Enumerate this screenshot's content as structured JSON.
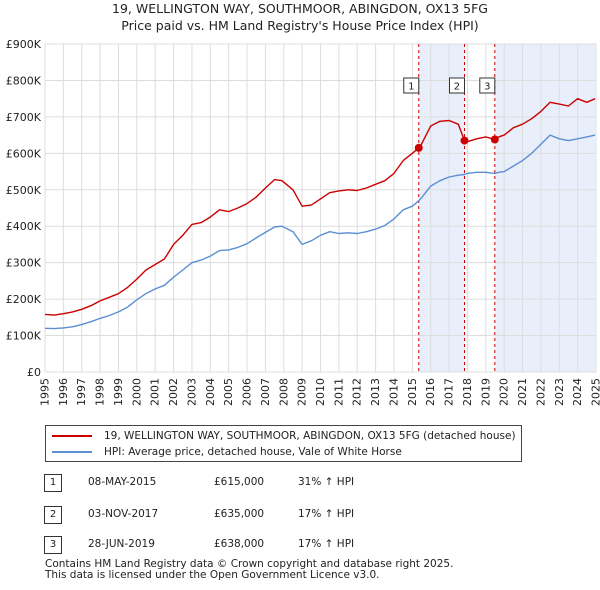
{
  "colors": {
    "property": "#cc0000",
    "hpi": "#5b8fd4",
    "shade": "#e8eefa",
    "grid": "#dddddd",
    "vline": "#cc0000"
  },
  "titles": {
    "line1": "19, WELLINGTON WAY, SOUTHMOOR, ABINGDON, OX13 5FG",
    "line2": "Price paid vs. HM Land Registry's House Price Index (HPI)"
  },
  "legend": {
    "property": "19, WELLINGTON WAY, SOUTHMOOR, ABINGDON, OX13 5FG (detached house)",
    "hpi": "HPI: Average price, detached house, Vale of White Horse"
  },
  "transactions": [
    {
      "num": "1",
      "date": "08-MAY-2015",
      "price": "£615,000",
      "hpi": "31% ↑ HPI",
      "year": 2015.35,
      "value": 615000
    },
    {
      "num": "2",
      "date": "03-NOV-2017",
      "price": "£635,000",
      "hpi": "17% ↑ HPI",
      "year": 2017.84,
      "value": 635000
    },
    {
      "num": "3",
      "date": "28-JUN-2019",
      "price": "£638,000",
      "hpi": "17% ↑ HPI",
      "year": 2019.49,
      "value": 638000
    }
  ],
  "footer": {
    "line1": "Contains HM Land Registry data © Crown copyright and database right 2025.",
    "line2": "This data is licensed under the Open Government Licence v3.0."
  },
  "chart_data": {
    "type": "line",
    "title": "19, WELLINGTON WAY, SOUTHMOOR, ABINGDON, OX13 5FG — Price paid vs. HM Land Registry's House Price Index (HPI)",
    "xlabel": "",
    "ylabel": "",
    "xlim": [
      1995,
      2025
    ],
    "ylim": [
      0,
      900000
    ],
    "x_ticks": [
      "1995",
      "1996",
      "1997",
      "1998",
      "1999",
      "2000",
      "2001",
      "2002",
      "2003",
      "2004",
      "2005",
      "2006",
      "2007",
      "2008",
      "2009",
      "2010",
      "2011",
      "2012",
      "2013",
      "2014",
      "2015",
      "2016",
      "2017",
      "2018",
      "2019",
      "2020",
      "2021",
      "2022",
      "2023",
      "2024",
      "2025"
    ],
    "y_ticks": [
      {
        "value": 0,
        "label": "£0"
      },
      {
        "value": 100000,
        "label": "£100K"
      },
      {
        "value": 200000,
        "label": "£200K"
      },
      {
        "value": 300000,
        "label": "£300K"
      },
      {
        "value": 400000,
        "label": "£400K"
      },
      {
        "value": 500000,
        "label": "£500K"
      },
      {
        "value": 600000,
        "label": "£600K"
      },
      {
        "value": 700000,
        "label": "£700K"
      },
      {
        "value": 800000,
        "label": "£800K"
      },
      {
        "value": 900000,
        "label": "£900K"
      }
    ],
    "grid": true,
    "shaded_ranges": [
      [
        2015.35,
        2017.84
      ],
      [
        2019.49,
        2024.95
      ]
    ],
    "series": [
      {
        "name": "19, WELLINGTON WAY, SOUTHMOOR, ABINGDON, OX13 5FG (detached house)",
        "x": [
          1995,
          1995.5,
          1996,
          1996.5,
          1997,
          1997.5,
          1998,
          1998.5,
          1999,
          1999.5,
          2000,
          2000.5,
          2001,
          2001.5,
          2002,
          2002.5,
          2003,
          2003.5,
          2004,
          2004.5,
          2005,
          2005.5,
          2006,
          2006.5,
          2007,
          2007.5,
          2007.9,
          2008.5,
          2009,
          2009.5,
          2010,
          2010.5,
          2011,
          2011.5,
          2012,
          2012.5,
          2013,
          2013.5,
          2014,
          2014.5,
          2015,
          2015.35,
          2015.5,
          2016,
          2016.5,
          2017,
          2017.5,
          2017.84,
          2018,
          2018.5,
          2019,
          2019.49,
          2019.7,
          2020,
          2020.5,
          2021,
          2021.5,
          2022,
          2022.5,
          2023,
          2023.5,
          2024,
          2024.5,
          2024.95
        ],
        "values": [
          158000,
          156000,
          160000,
          165000,
          172000,
          182000,
          195000,
          205000,
          215000,
          232000,
          255000,
          280000,
          295000,
          310000,
          350000,
          375000,
          405000,
          410000,
          425000,
          445000,
          440000,
          450000,
          462000,
          480000,
          505000,
          528000,
          525000,
          500000,
          455000,
          458000,
          475000,
          492000,
          497000,
          500000,
          498000,
          505000,
          515000,
          525000,
          545000,
          580000,
          600000,
          615000,
          625000,
          675000,
          688000,
          690000,
          680000,
          635000,
          632000,
          640000,
          645000,
          638000,
          645000,
          650000,
          670000,
          680000,
          695000,
          715000,
          740000,
          735000,
          730000,
          750000,
          740000,
          750000
        ]
      },
      {
        "name": "HPI: Average price, detached house, Vale of White Horse",
        "x": [
          1995,
          1995.5,
          1996,
          1996.5,
          1997,
          1997.5,
          1998,
          1998.5,
          1999,
          1999.5,
          2000,
          2000.5,
          2001,
          2001.5,
          2002,
          2002.5,
          2003,
          2003.5,
          2004,
          2004.5,
          2005,
          2005.5,
          2006,
          2006.5,
          2007,
          2007.5,
          2007.9,
          2008.5,
          2009,
          2009.5,
          2010,
          2010.5,
          2011,
          2011.5,
          2012,
          2012.5,
          2013,
          2013.5,
          2014,
          2014.5,
          2015,
          2015.35,
          2015.5,
          2016,
          2016.5,
          2017,
          2017.5,
          2017.84,
          2018,
          2018.5,
          2019,
          2019.49,
          2019.7,
          2020,
          2020.5,
          2021,
          2021.5,
          2022,
          2022.5,
          2023,
          2023.5,
          2024,
          2024.5,
          2024.95
        ],
        "values": [
          120000,
          119000,
          121000,
          124000,
          130000,
          138000,
          147000,
          155000,
          165000,
          178000,
          198000,
          215000,
          228000,
          238000,
          260000,
          280000,
          300000,
          307000,
          318000,
          333000,
          335000,
          342000,
          352000,
          368000,
          383000,
          398000,
          400000,
          385000,
          350000,
          360000,
          375000,
          385000,
          380000,
          382000,
          380000,
          385000,
          392000,
          402000,
          420000,
          445000,
          455000,
          470000,
          478000,
          510000,
          525000,
          535000,
          540000,
          542000,
          545000,
          548000,
          548000,
          545000,
          548000,
          550000,
          565000,
          580000,
          600000,
          625000,
          650000,
          640000,
          635000,
          640000,
          645000,
          650000
        ]
      }
    ],
    "markers": [
      {
        "label": "1",
        "x": 2015.35,
        "y": 615000
      },
      {
        "label": "2",
        "x": 2017.84,
        "y": 635000
      },
      {
        "label": "3",
        "x": 2019.49,
        "y": 638000
      }
    ]
  }
}
